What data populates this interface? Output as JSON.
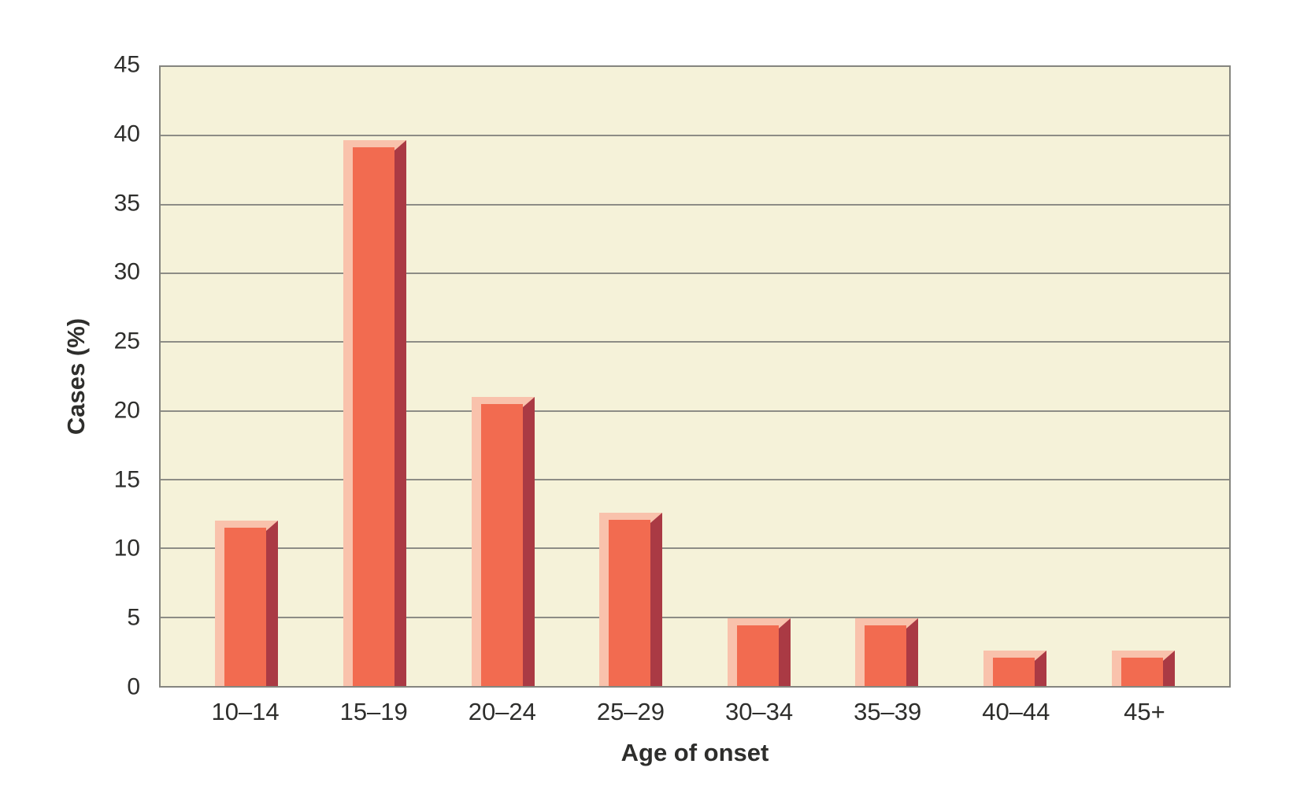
{
  "chart_data": {
    "type": "bar",
    "title": "",
    "categories": [
      "10–14",
      "15–19",
      "20–24",
      "25–29",
      "30–34",
      "35–39",
      "40–44",
      "45+"
    ],
    "values": [
      12,
      39.7,
      21,
      12.6,
      4.9,
      4.9,
      2.6,
      2.6
    ],
    "series_name": "Cases (%)",
    "xlabel": "Age of onset",
    "ylabel": "Cases (%)",
    "ylim": [
      0,
      45
    ],
    "ytick_step": 5,
    "yticks": [
      "0",
      "5",
      "10",
      "15",
      "20",
      "25",
      "30",
      "35",
      "40",
      "45"
    ],
    "grid": "horizontal-only",
    "legend": "none",
    "bar_style": "3d-beveled",
    "colors": {
      "bar_face": "#f26b50",
      "bar_highlight": "#f9c2ac",
      "bar_shadow": "#aa3a44",
      "plot_background": "#f5f2d9",
      "grid_line": "#8d8d86",
      "axis_line": "#85857f",
      "text": "#2e2e2c",
      "page_background": "#ffffff"
    }
  }
}
